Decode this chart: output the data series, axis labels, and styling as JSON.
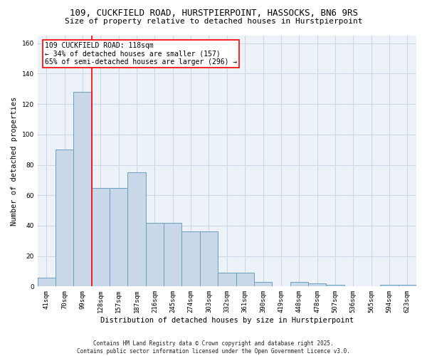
{
  "title1": "109, CUCKFIELD ROAD, HURSTPIERPOINT, HASSOCKS, BN6 9RS",
  "title2": "Size of property relative to detached houses in Hurstpierpoint",
  "xlabel": "Distribution of detached houses by size in Hurstpierpoint",
  "ylabel": "Number of detached properties",
  "categories": [
    "41sqm",
    "70sqm",
    "99sqm",
    "128sqm",
    "157sqm",
    "187sqm",
    "216sqm",
    "245sqm",
    "274sqm",
    "303sqm",
    "332sqm",
    "361sqm",
    "390sqm",
    "419sqm",
    "448sqm",
    "478sqm",
    "507sqm",
    "536sqm",
    "565sqm",
    "594sqm",
    "623sqm"
  ],
  "values": [
    6,
    90,
    128,
    65,
    65,
    75,
    42,
    42,
    36,
    36,
    9,
    9,
    3,
    0,
    3,
    2,
    1,
    0,
    0,
    1,
    1
  ],
  "bar_color": "#c8d8e8",
  "bar_edge_color": "#6a9fc0",
  "grid_color": "#ccd8e8",
  "background_color": "#edf2f9",
  "annotation_text": "109 CUCKFIELD ROAD: 118sqm\n← 34% of detached houses are smaller (157)\n65% of semi-detached houses are larger (296) →",
  "annotation_box_color": "white",
  "annotation_box_edge": "red",
  "red_line_x": 2.5,
  "ylim": [
    0,
    165
  ],
  "yticks": [
    0,
    20,
    40,
    60,
    80,
    100,
    120,
    140,
    160
  ],
  "footer": "Contains HM Land Registry data © Crown copyright and database right 2025.\nContains public sector information licensed under the Open Government Licence v3.0.",
  "title_fontsize": 9,
  "subtitle_fontsize": 8,
  "tick_fontsize": 6.5,
  "label_fontsize": 7.5,
  "annot_fontsize": 7,
  "footer_fontsize": 5.5
}
